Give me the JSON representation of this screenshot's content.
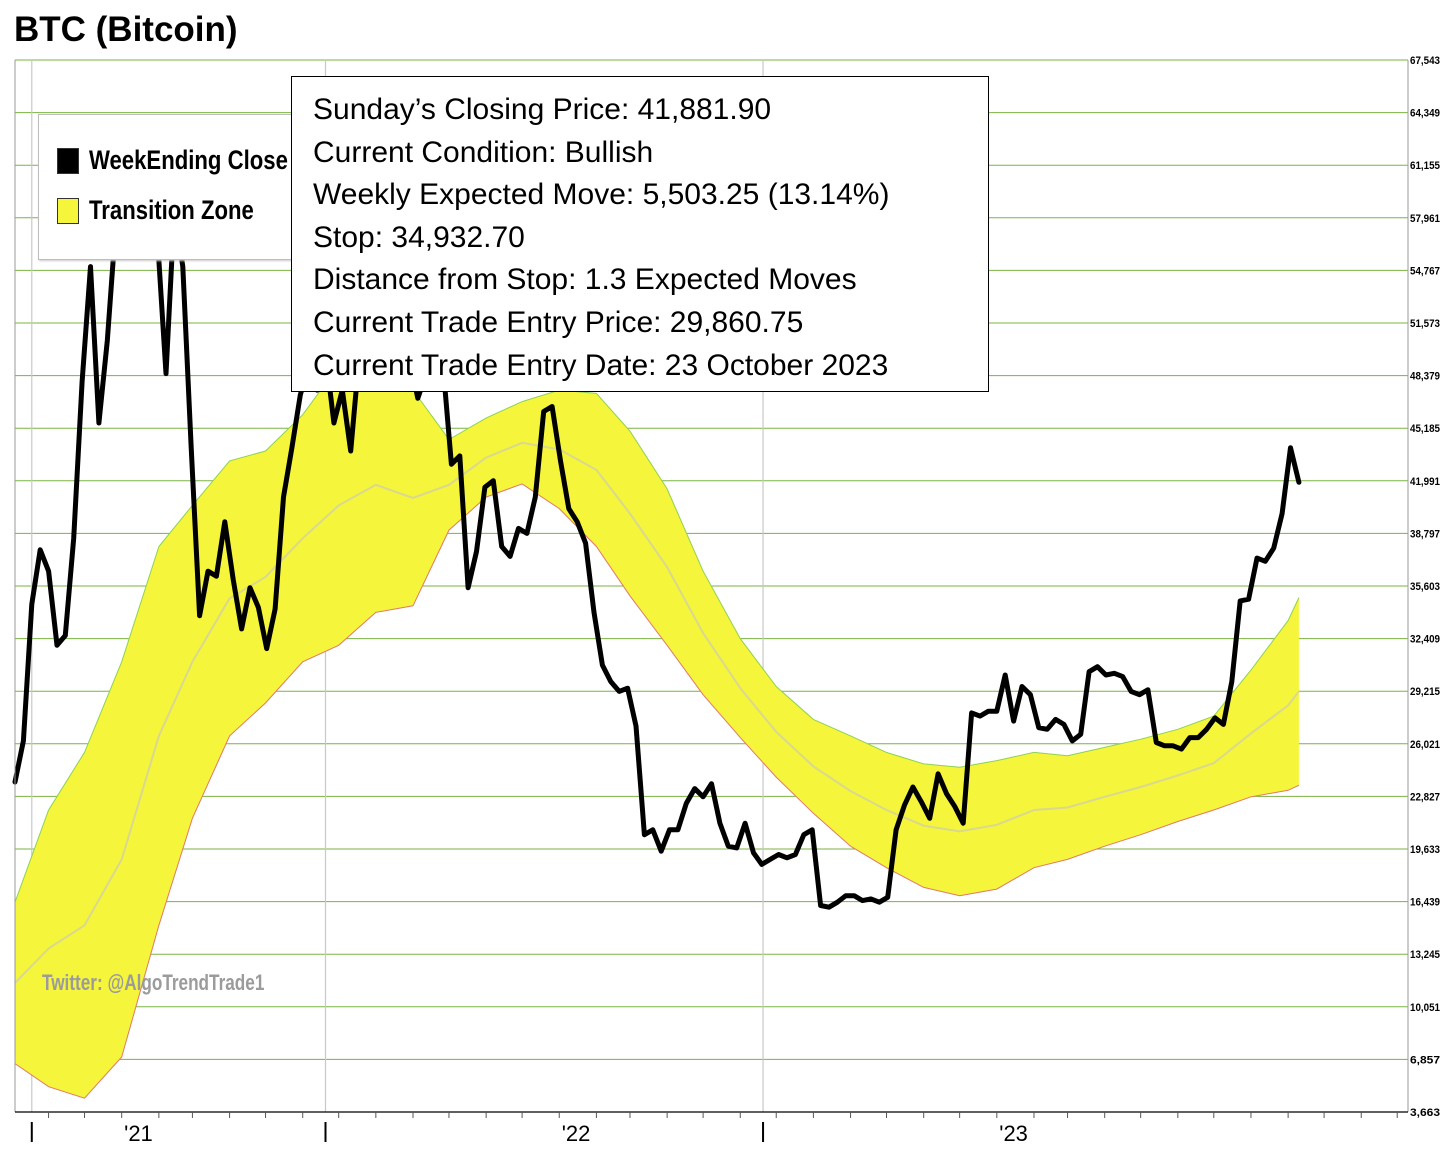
{
  "title": "BTC (Bitcoin)",
  "legend": {
    "items": [
      {
        "label": "WeekEnding Close",
        "color": "#000000"
      },
      {
        "label": "Transition Zone",
        "color": "#f5f53c"
      }
    ]
  },
  "info": {
    "lines": [
      "Sunday’s Closing Price: 41,881.90",
      "Current Condition: Bullish",
      "Weekly Expected Move: 5,503.25 (13.14%)",
      "Stop: 34,932.70",
      "Distance from Stop: 1.3 Expected Moves",
      "Current Trade Entry Price: 29,860.75",
      "Current Trade Entry Date: 23 October 2023"
    ]
  },
  "watermark": "Twitter: @AlgoTrendTrade1",
  "colors": {
    "close_line": "#000000",
    "zone_fill": "#f5f53c",
    "zone_upper_edge": "#8fd14f",
    "zone_lower_edge": "#e07a6a",
    "zone_mid": "#d8d890",
    "grid_h": "#7cb342",
    "grid_v": "#c8c8c8"
  },
  "chart_data": {
    "type": "line",
    "x_range": [
      "2020-10-04",
      "2023-12-10"
    ],
    "ylim": [
      3663,
      67543
    ],
    "y_ticks": [
      "67,543",
      "64,349",
      "61,155",
      "57,961",
      "54,767",
      "51,573",
      "48,379",
      "45,185",
      "41,991",
      "38,797",
      "35,603",
      "32,409",
      "29,215",
      "26,021",
      "22,827",
      "19,633",
      "16,439",
      "13,245",
      "10,051",
      "6,857",
      "3,663"
    ],
    "x_ticks": [
      {
        "date": "2020-10-18",
        "label": ""
      },
      {
        "date": "2021-01-15",
        "label": "'21"
      },
      {
        "date": "2021-06-20",
        "label": ""
      },
      {
        "date": "2022-01-15",
        "label": "'22"
      },
      {
        "date": "2022-06-20",
        "label": ""
      },
      {
        "date": "2023-01-15",
        "label": "'23"
      }
    ],
    "year_dividers": [
      "2020-10-18",
      "2021-06-20",
      "2022-06-20"
    ],
    "series": [
      {
        "name": "WeekEnding Close",
        "points": [
          [
            "2020-10-04",
            23700
          ],
          [
            "2020-10-11",
            26200
          ],
          [
            "2020-10-18",
            34500
          ],
          [
            "2020-10-25",
            37800
          ],
          [
            "2020-11-01",
            36500
          ],
          [
            "2020-11-08",
            32000
          ],
          [
            "2020-11-15",
            32600
          ],
          [
            "2020-11-22",
            38500
          ],
          [
            "2020-11-29",
            48000
          ],
          [
            "2020-12-06",
            55000
          ],
          [
            "2020-12-13",
            45500
          ],
          [
            "2020-12-20",
            50500
          ],
          [
            "2020-12-27",
            57500
          ],
          [
            "2021-01-03",
            60000
          ],
          [
            "2021-01-10",
            58000
          ],
          [
            "2021-01-17",
            56800
          ],
          [
            "2021-01-24",
            60000
          ],
          [
            "2021-01-31",
            56500
          ],
          [
            "2021-02-07",
            48500
          ],
          [
            "2021-02-14",
            58500
          ],
          [
            "2021-02-21",
            55000
          ],
          [
            "2021-02-28",
            44000
          ],
          [
            "2021-03-07",
            33800
          ],
          [
            "2021-03-14",
            36500
          ],
          [
            "2021-03-21",
            36200
          ],
          [
            "2021-03-28",
            39500
          ],
          [
            "2021-04-04",
            36000
          ],
          [
            "2021-04-11",
            33000
          ],
          [
            "2021-04-18",
            35500
          ],
          [
            "2021-04-25",
            34300
          ],
          [
            "2021-05-02",
            31800
          ],
          [
            "2021-05-09",
            34200
          ],
          [
            "2021-05-16",
            41000
          ],
          [
            "2021-05-23",
            44000
          ],
          [
            "2021-05-30",
            47200
          ],
          [
            "2021-06-06",
            49000
          ],
          [
            "2021-06-13",
            47500
          ],
          [
            "2021-06-20",
            49800
          ],
          [
            "2021-06-27",
            45500
          ],
          [
            "2021-07-04",
            47500
          ],
          [
            "2021-07-11",
            43800
          ],
          [
            "2021-07-18",
            49500
          ],
          [
            "2021-07-25",
            48500
          ],
          [
            "2021-08-01",
            47800
          ],
          [
            "2021-08-08",
            49000
          ],
          [
            "2021-08-15",
            48800
          ],
          [
            "2021-08-22",
            48200
          ],
          [
            "2021-08-29",
            49500
          ],
          [
            "2021-09-05",
            47000
          ],
          [
            "2021-09-12",
            48500
          ],
          [
            "2021-09-19",
            48000
          ],
          [
            "2021-09-26",
            49000
          ],
          [
            "2021-10-03",
            43000
          ],
          [
            "2021-10-10",
            43500
          ],
          [
            "2021-10-17",
            35500
          ],
          [
            "2021-10-24",
            37700
          ],
          [
            "2021-10-31",
            41600
          ],
          [
            "2021-11-07",
            42000
          ],
          [
            "2021-11-14",
            38000
          ],
          [
            "2021-11-21",
            37400
          ],
          [
            "2021-11-28",
            39100
          ],
          [
            "2021-12-05",
            38800
          ],
          [
            "2021-12-12",
            41000
          ],
          [
            "2021-12-19",
            46200
          ],
          [
            "2021-12-26",
            46500
          ],
          [
            "2022-01-02",
            43200
          ],
          [
            "2022-01-09",
            40300
          ],
          [
            "2022-01-16",
            39500
          ],
          [
            "2022-01-23",
            38200
          ],
          [
            "2022-01-30",
            34000
          ],
          [
            "2022-02-06",
            30800
          ],
          [
            "2022-02-13",
            29800
          ],
          [
            "2022-02-20",
            29200
          ],
          [
            "2022-02-27",
            29400
          ],
          [
            "2022-03-06",
            27100
          ],
          [
            "2022-03-13",
            20500
          ],
          [
            "2022-03-20",
            20800
          ],
          [
            "2022-03-27",
            19500
          ],
          [
            "2022-04-03",
            20800
          ],
          [
            "2022-04-10",
            20800
          ],
          [
            "2022-04-17",
            22400
          ],
          [
            "2022-04-24",
            23300
          ],
          [
            "2022-05-01",
            22800
          ],
          [
            "2022-05-08",
            23600
          ],
          [
            "2022-05-15",
            21200
          ],
          [
            "2022-05-22",
            19800
          ],
          [
            "2022-05-29",
            19700
          ],
          [
            "2022-06-05",
            21200
          ],
          [
            "2022-06-12",
            19400
          ],
          [
            "2022-06-19",
            18700
          ],
          [
            "2022-06-26",
            19000
          ],
          [
            "2022-07-03",
            19300
          ],
          [
            "2022-07-10",
            19100
          ],
          [
            "2022-07-17",
            19300
          ],
          [
            "2022-07-24",
            20500
          ],
          [
            "2022-07-31",
            20800
          ],
          [
            "2022-08-07",
            16200
          ],
          [
            "2022-08-14",
            16100
          ],
          [
            "2022-08-21",
            16400
          ],
          [
            "2022-08-28",
            16800
          ],
          [
            "2022-09-04",
            16800
          ],
          [
            "2022-09-11",
            16500
          ],
          [
            "2022-09-18",
            16600
          ],
          [
            "2022-09-25",
            16400
          ],
          [
            "2022-10-02",
            16700
          ],
          [
            "2022-10-09",
            20800
          ],
          [
            "2022-10-16",
            22300
          ],
          [
            "2022-10-23",
            23400
          ],
          [
            "2022-10-30",
            22500
          ],
          [
            "2022-11-06",
            21500
          ],
          [
            "2022-11-13",
            24200
          ],
          [
            "2022-11-20",
            23000
          ],
          [
            "2022-11-27",
            22200
          ],
          [
            "2022-12-04",
            21200
          ],
          [
            "2022-12-11",
            27900
          ],
          [
            "2022-12-18",
            27700
          ],
          [
            "2022-12-25",
            28000
          ],
          [
            "2023-01-01",
            28000
          ],
          [
            "2023-01-08",
            30200
          ],
          [
            "2023-01-15",
            27400
          ],
          [
            "2023-01-22",
            29500
          ],
          [
            "2023-01-29",
            29000
          ],
          [
            "2023-02-05",
            27000
          ],
          [
            "2023-02-12",
            26900
          ],
          [
            "2023-02-19",
            27500
          ],
          [
            "2023-02-26",
            27200
          ],
          [
            "2023-03-05",
            26200
          ],
          [
            "2023-03-12",
            26600
          ],
          [
            "2023-03-19",
            30400
          ],
          [
            "2023-03-26",
            30700
          ],
          [
            "2023-04-02",
            30200
          ],
          [
            "2023-04-09",
            30300
          ],
          [
            "2023-04-16",
            30100
          ],
          [
            "2023-04-23",
            29200
          ],
          [
            "2023-04-30",
            29000
          ],
          [
            "2023-05-07",
            29300
          ],
          [
            "2023-05-14",
            26100
          ],
          [
            "2023-05-21",
            25900
          ],
          [
            "2023-05-28",
            25900
          ],
          [
            "2023-06-04",
            25700
          ],
          [
            "2023-06-11",
            26400
          ],
          [
            "2023-06-18",
            26400
          ],
          [
            "2023-06-25",
            26900
          ],
          [
            "2023-07-02",
            27600
          ],
          [
            "2023-07-09",
            27200
          ],
          [
            "2023-07-16",
            29800
          ],
          [
            "2023-07-23",
            34700
          ],
          [
            "2023-07-30",
            34800
          ],
          [
            "2023-08-06",
            37300
          ],
          [
            "2023-08-13",
            37100
          ],
          [
            "2023-08-20",
            37900
          ],
          [
            "2023-08-27",
            40000
          ],
          [
            "2023-09-03",
            44000
          ],
          [
            "2023-09-10",
            41900
          ]
        ]
      },
      {
        "name": "Transition Zone",
        "upper": [
          [
            "2020-10-04",
            16400
          ],
          [
            "2020-11-01",
            22000
          ],
          [
            "2020-12-01",
            25500
          ],
          [
            "2021-01-01",
            31000
          ],
          [
            "2021-02-01",
            38000
          ],
          [
            "2021-03-01",
            40500
          ],
          [
            "2021-04-01",
            43200
          ],
          [
            "2021-05-01",
            43800
          ],
          [
            "2021-06-01",
            46000
          ],
          [
            "2021-07-01",
            49000
          ],
          [
            "2021-08-01",
            49500
          ],
          [
            "2021-09-01",
            47500
          ],
          [
            "2021-10-01",
            44500
          ],
          [
            "2021-11-01",
            45800
          ],
          [
            "2021-12-01",
            46800
          ],
          [
            "2022-01-01",
            47500
          ],
          [
            "2022-02-01",
            47300
          ],
          [
            "2022-03-01",
            45000
          ],
          [
            "2022-04-01",
            41500
          ],
          [
            "2022-05-01",
            36500
          ],
          [
            "2022-06-01",
            32400
          ],
          [
            "2022-07-01",
            29500
          ],
          [
            "2022-08-01",
            27500
          ],
          [
            "2022-09-01",
            26500
          ],
          [
            "2022-10-01",
            25500
          ],
          [
            "2022-11-01",
            24800
          ],
          [
            "2022-12-01",
            24600
          ],
          [
            "2023-01-01",
            25000
          ],
          [
            "2023-02-01",
            25500
          ],
          [
            "2023-03-01",
            25300
          ],
          [
            "2023-04-01",
            25800
          ],
          [
            "2023-05-01",
            26300
          ],
          [
            "2023-06-01",
            26900
          ],
          [
            "2023-07-01",
            27700
          ],
          [
            "2023-08-01",
            30500
          ],
          [
            "2023-09-01",
            33500
          ],
          [
            "2023-09-10",
            34900
          ]
        ],
        "lower": [
          [
            "2020-10-04",
            6600
          ],
          [
            "2020-11-01",
            5200
          ],
          [
            "2020-12-01",
            4500
          ],
          [
            "2021-01-01",
            7000
          ],
          [
            "2021-02-01",
            15000
          ],
          [
            "2021-03-01",
            21500
          ],
          [
            "2021-04-01",
            26500
          ],
          [
            "2021-05-01",
            28500
          ],
          [
            "2021-06-01",
            31000
          ],
          [
            "2021-07-01",
            32000
          ],
          [
            "2021-08-01",
            34000
          ],
          [
            "2021-09-01",
            34400
          ],
          [
            "2021-10-01",
            39000
          ],
          [
            "2021-11-01",
            41000
          ],
          [
            "2021-12-01",
            41800
          ],
          [
            "2022-01-01",
            40300
          ],
          [
            "2022-02-01",
            38000
          ],
          [
            "2022-03-01",
            35000
          ],
          [
            "2022-04-01",
            32000
          ],
          [
            "2022-05-01",
            29000
          ],
          [
            "2022-06-01",
            26400
          ],
          [
            "2022-07-01",
            24000
          ],
          [
            "2022-08-01",
            21800
          ],
          [
            "2022-09-01",
            19800
          ],
          [
            "2022-10-01",
            18500
          ],
          [
            "2022-11-01",
            17300
          ],
          [
            "2022-12-01",
            16800
          ],
          [
            "2023-01-01",
            17200
          ],
          [
            "2023-02-01",
            18500
          ],
          [
            "2023-03-01",
            19000
          ],
          [
            "2023-04-01",
            19800
          ],
          [
            "2023-05-01",
            20500
          ],
          [
            "2023-06-01",
            21300
          ],
          [
            "2023-07-01",
            22000
          ],
          [
            "2023-08-01",
            22800
          ],
          [
            "2023-09-01",
            23200
          ],
          [
            "2023-09-10",
            23500
          ]
        ]
      }
    ]
  }
}
